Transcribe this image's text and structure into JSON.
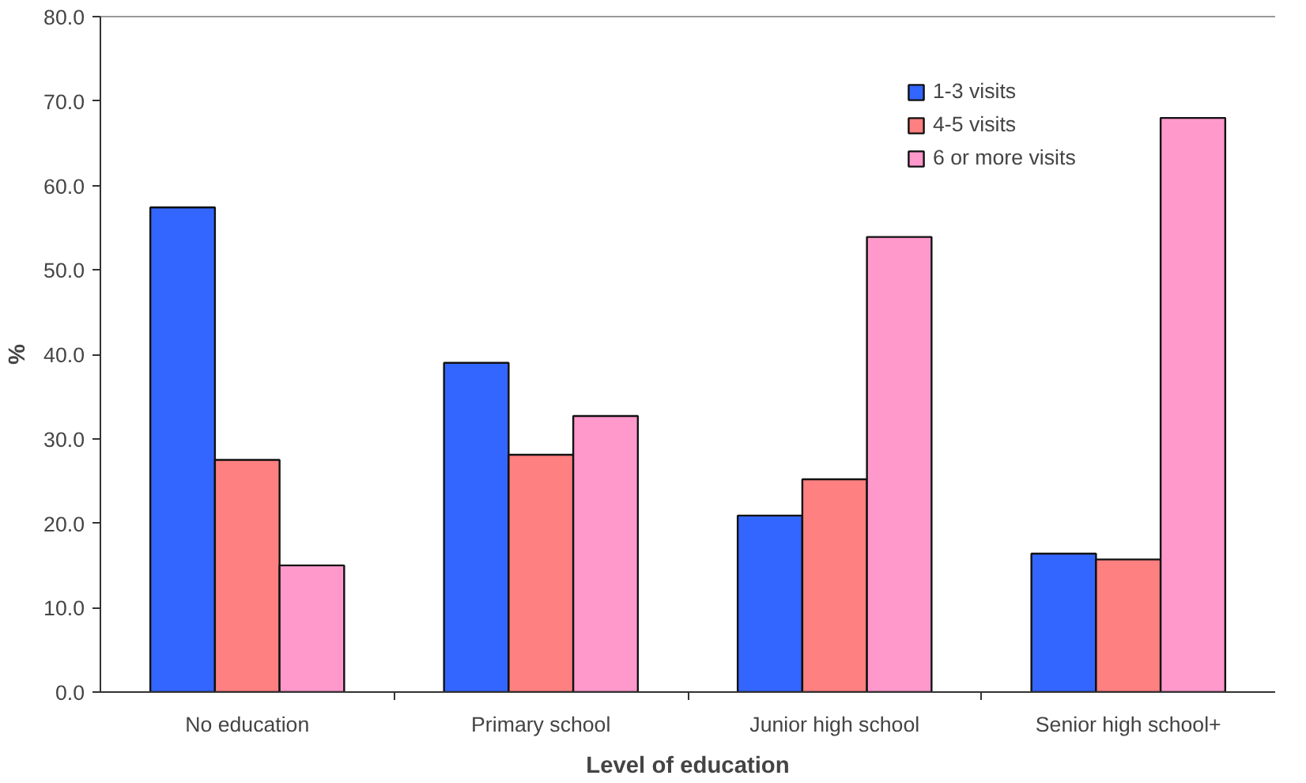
{
  "chart_data": {
    "type": "bar",
    "xlabel": "Level of education",
    "ylabel": "%",
    "categories": [
      "No education",
      "Primary school",
      "Junior high school",
      "Senior high school+"
    ],
    "series": [
      {
        "name": "1-3 visits",
        "color": "#3366ff",
        "values": [
          57.4,
          39.0,
          20.9,
          16.4
        ]
      },
      {
        "name": "4-5 visits",
        "color": "#ff8080",
        "values": [
          27.5,
          28.1,
          25.2,
          15.7
        ]
      },
      {
        "name": "6 or more visits",
        "color": "#ff99cc",
        "values": [
          15.0,
          32.7,
          53.9,
          68.0
        ]
      }
    ],
    "ylim": [
      0,
      80
    ],
    "yticks": [
      {
        "value": 0,
        "label": "0.0"
      },
      {
        "value": 10,
        "label": "10.0"
      },
      {
        "value": 20,
        "label": "20.0"
      },
      {
        "value": 30,
        "label": "30.0"
      },
      {
        "value": 40,
        "label": "40.0"
      },
      {
        "value": 50,
        "label": "50.0"
      },
      {
        "value": 60,
        "label": "60.0"
      },
      {
        "value": 70,
        "label": "70.0"
      },
      {
        "value": 80,
        "label": "80.0"
      }
    ],
    "grid": false,
    "legend": "top"
  }
}
